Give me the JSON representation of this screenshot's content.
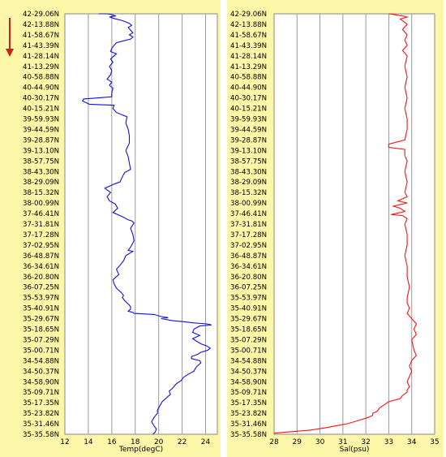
{
  "colors": {
    "panel_background": "#fcf6a8",
    "plot_background": "#ffffff",
    "grid": "#999999",
    "temperature_line": "#1010dd",
    "salinity_line": "#ff1010",
    "arrow": "#cc2020"
  },
  "icons": {
    "direction": "down-arrow"
  },
  "chart_data": [
    {
      "type": "line",
      "orientation": "vertical-profile",
      "xlabel": "Temp(degC)",
      "xlim": [
        12,
        25
      ],
      "xticks": [
        12,
        14,
        16,
        18,
        20,
        22,
        24
      ],
      "grid": true,
      "y_categories": [
        "42-29.06N",
        "42-13.88N",
        "41-58.67N",
        "41-43.39N",
        "41-28.14N",
        "41-13.29N",
        "40-58.88N",
        "40-44.90N",
        "40-30.17N",
        "40-15.21N",
        "39-59.93N",
        "39-44.59N",
        "39-28.87N",
        "39-13.10N",
        "38-57.75N",
        "38-43.30N",
        "38-29.09N",
        "38-15.32N",
        "38-00.99N",
        "37-46.41N",
        "37-31.81N",
        "37-17.28N",
        "37-02.95N",
        "36-48.87N",
        "36-34.61N",
        "36-20.80N",
        "36-07.25N",
        "35-53.97N",
        "35-40.91N",
        "35-29.67N",
        "35-18.65N",
        "35-07.29N",
        "35-00.71N",
        "34-54.88N",
        "34-50.37N",
        "34-58.90N",
        "35-09.71N",
        "35-17.35N",
        "35-23.82N",
        "35-31.46N",
        "35-35.58N"
      ],
      "series": [
        {
          "x": [
            14.9,
            15.6,
            16.0,
            16.2,
            16.3,
            15.8,
            16.2,
            16.9,
            17.5,
            17.7,
            17.4,
            17.6,
            17.8,
            17.5,
            17.8,
            17.6,
            16.9,
            16.4,
            16.2,
            16.0,
            15.9,
            16.4,
            16.2,
            15.9,
            16.1,
            15.8,
            16.0,
            15.9,
            15.6,
            16.0,
            15.8,
            16.1,
            16.0,
            16.0,
            13.6,
            13.5,
            14.1,
            16.2,
            16.1,
            16.4,
            17.3,
            17.2,
            17.4,
            17.5,
            17.5,
            17.2,
            17.4,
            17.5,
            17.6,
            17.1,
            16.9,
            16.7,
            16.2,
            15.4,
            15.9,
            15.6,
            15.8,
            16.3,
            16.5,
            16.1,
            16.9,
            17.4,
            17.7,
            17.9,
            17.6,
            17.8,
            17.9,
            17.6,
            17.4,
            17.8,
            17.2,
            17.0,
            16.8,
            16.4,
            16.6,
            16.1,
            16.2,
            16.4,
            16.8,
            17.0,
            16.9,
            17.1,
            17.3,
            17.5,
            17.6,
            17.6,
            17.4,
            17.8,
            17.9,
            19.6,
            20.2,
            20.8,
            20.2,
            21.2,
            22.2,
            22.9,
            24.1,
            24.5,
            23.5,
            23.0,
            22.9,
            23.5,
            22.9,
            23.3,
            23.6,
            24.1,
            24.4,
            24.2,
            23.6,
            23.3,
            22.8,
            22.8,
            23.5,
            23.6,
            23.2,
            23.0,
            22.5,
            22.1,
            21.9,
            21.5,
            21.2,
            20.9,
            21.0,
            20.7,
            20.3,
            20.1,
            19.9,
            19.9,
            19.6,
            19.4,
            19.6,
            19.8,
            19.7,
            19.5
          ],
          "y_index": [
            0.0,
            0.0,
            0.08,
            0.15,
            0.2,
            0.3,
            0.45,
            0.65,
            0.9,
            1.1,
            1.3,
            1.55,
            1.8,
            2.0,
            2.2,
            2.4,
            2.6,
            2.75,
            3.0,
            3.3,
            3.6,
            3.8,
            4.0,
            4.3,
            4.6,
            5.0,
            5.4,
            5.8,
            6.2,
            6.5,
            6.8,
            7.1,
            7.5,
            7.9,
            8.1,
            8.3,
            8.6,
            8.7,
            9.0,
            9.4,
            9.8,
            10.4,
            11.0,
            11.6,
            12.3,
            13.0,
            13.6,
            14.2,
            14.8,
            15.1,
            15.5,
            16.0,
            16.2,
            16.6,
            17.0,
            17.4,
            17.8,
            18.1,
            18.5,
            18.9,
            19.3,
            19.6,
            19.7,
            19.9,
            20.4,
            21.0,
            21.6,
            22.2,
            22.5,
            22.6,
            23.0,
            23.5,
            23.8,
            24.3,
            24.8,
            25.3,
            25.7,
            26.1,
            26.5,
            26.8,
            27.0,
            27.3,
            27.5,
            27.7,
            27.9,
            28.1,
            28.3,
            28.4,
            28.5,
            28.6,
            28.8,
            28.9,
            29.0,
            29.2,
            29.3,
            29.4,
            29.5,
            29.6,
            29.7,
            30.0,
            30.3,
            30.6,
            30.9,
            31.2,
            31.4,
            31.6,
            31.8,
            32.0,
            32.2,
            32.4,
            32.6,
            32.8,
            33.0,
            33.2,
            33.6,
            34.0,
            34.3,
            34.6,
            34.9,
            35.2,
            35.6,
            35.9,
            36.2,
            36.5,
            36.9,
            37.3,
            37.7,
            38.0,
            38.4,
            38.8,
            39.2,
            39.5,
            39.8,
            40.0
          ]
        }
      ]
    },
    {
      "type": "line",
      "orientation": "vertical-profile",
      "xlabel": "Sal(psu)",
      "xlim": [
        28,
        35
      ],
      "xticks": [
        28,
        29,
        30,
        31,
        32,
        33,
        34,
        35
      ],
      "grid": true,
      "y_categories": [
        "42-29.06N",
        "42-13.88N",
        "41-58.67N",
        "41-43.39N",
        "41-28.14N",
        "41-13.29N",
        "40-58.88N",
        "40-44.90N",
        "40-30.17N",
        "40-15.21N",
        "39-59.93N",
        "39-44.59N",
        "39-28.87N",
        "39-13.10N",
        "38-57.75N",
        "38-43.30N",
        "38-29.09N",
        "38-15.32N",
        "38-00.99N",
        "37-46.41N",
        "37-31.81N",
        "37-17.28N",
        "37-02.95N",
        "36-48.87N",
        "36-34.61N",
        "36-20.80N",
        "36-07.25N",
        "35-53.97N",
        "35-40.91N",
        "35-29.67N",
        "35-18.65N",
        "35-07.29N",
        "35-00.71N",
        "34-54.88N",
        "34-50.37N",
        "34-58.90N",
        "35-09.71N",
        "35-17.35N",
        "35-23.82N",
        "35-31.46N",
        "35-35.58N"
      ],
      "series": [
        {
          "x": [
            33.0,
            33.3,
            33.6,
            33.8,
            33.5,
            33.8,
            33.6,
            33.8,
            33.7,
            33.8,
            33.6,
            33.8,
            33.7,
            33.8,
            33.7,
            33.8,
            33.7,
            33.8,
            33.8,
            33.7,
            33.0,
            33.0,
            33.7,
            33.7,
            33.8,
            33.7,
            33.8,
            33.7,
            33.8,
            33.4,
            33.8,
            33.2,
            33.5,
            33.7,
            33.1,
            33.6,
            33.8,
            33.7,
            33.8,
            33.8,
            33.7,
            33.8,
            33.8,
            33.9,
            33.8,
            33.8,
            33.9,
            33.8,
            34.0,
            34.2,
            34.1,
            34.2,
            34.0,
            34.1,
            34.2,
            34.0,
            33.9,
            34.0,
            33.9,
            33.8,
            33.9,
            33.8,
            33.8,
            33.6,
            33.5,
            33.0,
            32.8,
            32.6,
            32.5,
            32.3,
            32.3,
            32.1,
            31.8,
            31.5,
            31.2,
            30.7,
            30.2,
            29.6,
            28.5,
            28.0
          ],
          "y_index": [
            0.0,
            0.1,
            0.2,
            0.3,
            0.5,
            1.0,
            1.5,
            2.0,
            2.5,
            3.0,
            3.5,
            4.0,
            5.0,
            6.0,
            7.0,
            8.0,
            9.0,
            10.0,
            11.0,
            12.0,
            12.4,
            12.7,
            12.9,
            13.5,
            14.0,
            15.0,
            16.0,
            17.0,
            17.4,
            17.8,
            18.0,
            18.3,
            18.5,
            18.8,
            19.1,
            19.2,
            19.5,
            20.0,
            21.0,
            22.0,
            23.0,
            24.0,
            25.0,
            26.0,
            27.0,
            27.5,
            28.0,
            28.5,
            29.0,
            29.5,
            30.0,
            30.5,
            31.0,
            32.0,
            32.5,
            33.0,
            33.5,
            34.0,
            34.5,
            35.0,
            35.5,
            35.8,
            36.0,
            36.3,
            36.6,
            36.9,
            37.2,
            37.5,
            37.8,
            38.0,
            38.2,
            38.4,
            38.6,
            38.8,
            39.0,
            39.2,
            39.4,
            39.6,
            39.8,
            39.9
          ]
        }
      ]
    }
  ]
}
